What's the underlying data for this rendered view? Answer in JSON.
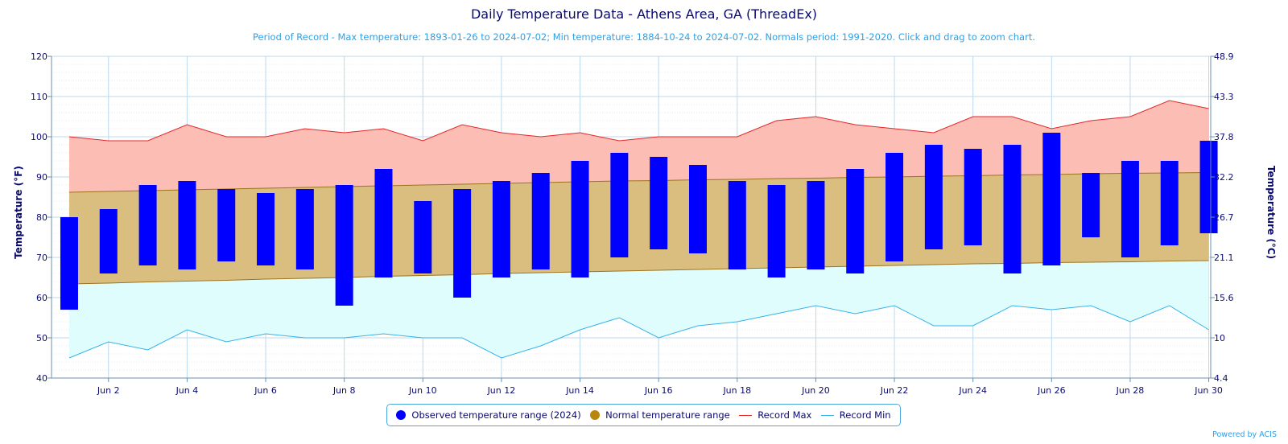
{
  "chart_data": {
    "type": "bar",
    "title": "Daily Temperature Data - Athens Area, GA (ThreadEx)",
    "subtitle": "Period of Record - Max temperature: 1893-01-26 to 2024-07-02; Min temperature: 1884-10-24 to 2024-07-02. Normals period: 1991-2020. Click and drag to zoom chart.",
    "ylabel": "Temperature (°F)",
    "ylabel_right": "Temperature (°C)",
    "ylim": [
      40,
      120
    ],
    "yticks": [
      "40",
      "50",
      "60",
      "70",
      "80",
      "90",
      "100",
      "110",
      "120"
    ],
    "yticks_right": [
      "4.4",
      "10",
      "15.6",
      "21.1",
      "26.7",
      "32.2",
      "37.8",
      "43.3",
      "48.9"
    ],
    "x": [
      1,
      2,
      3,
      4,
      5,
      6,
      7,
      8,
      9,
      10,
      11,
      12,
      13,
      14,
      15,
      16,
      17,
      18,
      19,
      20,
      21,
      22,
      23,
      24,
      25,
      26,
      27,
      28,
      29,
      30
    ],
    "xticks": [
      "Jun 2",
      "Jun 4",
      "Jun 6",
      "Jun 8",
      "Jun 10",
      "Jun 12",
      "Jun 14",
      "Jun 16",
      "Jun 18",
      "Jun 20",
      "Jun 22",
      "Jun 24",
      "Jun 26",
      "Jun 28",
      "Jun 30"
    ],
    "xtick_days": [
      2,
      4,
      6,
      8,
      10,
      12,
      14,
      16,
      18,
      20,
      22,
      24,
      26,
      28,
      30
    ],
    "grid": true,
    "legend_placement": "bottom-center",
    "series": [
      {
        "name": "Observed temperature range (2024)",
        "color": "#0000ff",
        "low": [
          57,
          66,
          68,
          67,
          69,
          68,
          67,
          58,
          65,
          66,
          60,
          65,
          67,
          65,
          70,
          72,
          71,
          67,
          65,
          67,
          66,
          69,
          72,
          73,
          66,
          68,
          75,
          70,
          73,
          76
        ],
        "high": [
          80,
          82,
          88,
          89,
          87,
          86,
          87,
          88,
          92,
          84,
          87,
          89,
          91,
          94,
          96,
          95,
          93,
          89,
          88,
          89,
          92,
          96,
          98,
          97,
          98,
          101,
          91,
          94,
          94,
          99
        ]
      },
      {
        "name": "Normal temperature range",
        "color": "#b8860b",
        "low": [
          63.4,
          63.6,
          63.9,
          64.1,
          64.3,
          64.6,
          64.8,
          65.0,
          65.3,
          65.5,
          65.7,
          66.0,
          66.2,
          66.4,
          66.6,
          66.8,
          67.0,
          67.2,
          67.4,
          67.6,
          67.8,
          68.0,
          68.2,
          68.4,
          68.5,
          68.7,
          68.8,
          68.9,
          69.1,
          69.2
        ],
        "high": [
          86.2,
          86.4,
          86.6,
          86.8,
          87.0,
          87.2,
          87.4,
          87.6,
          87.8,
          88.0,
          88.2,
          88.4,
          88.6,
          88.8,
          89.0,
          89.1,
          89.3,
          89.4,
          89.6,
          89.7,
          89.9,
          90.0,
          90.2,
          90.3,
          90.5,
          90.6,
          90.8,
          90.9,
          91.0,
          91.1
        ]
      },
      {
        "name": "Record Max",
        "color": "#e8262a",
        "values": [
          100,
          99,
          99,
          103,
          100,
          100,
          102,
          101,
          102,
          99,
          103,
          101,
          100,
          101,
          99,
          100,
          100,
          100,
          104,
          105,
          103,
          102,
          101,
          105,
          105,
          102,
          104,
          105,
          109,
          107
        ]
      },
      {
        "name": "Record Min",
        "color": "#38b2ea",
        "values": [
          45,
          49,
          47,
          52,
          49,
          51,
          50,
          50,
          51,
          50,
          50,
          45,
          48,
          52,
          55,
          50,
          53,
          54,
          56,
          58,
          56,
          58,
          53,
          53,
          58,
          57,
          58,
          54,
          58,
          52
        ]
      }
    ],
    "credits": "Powered by ACIS"
  }
}
